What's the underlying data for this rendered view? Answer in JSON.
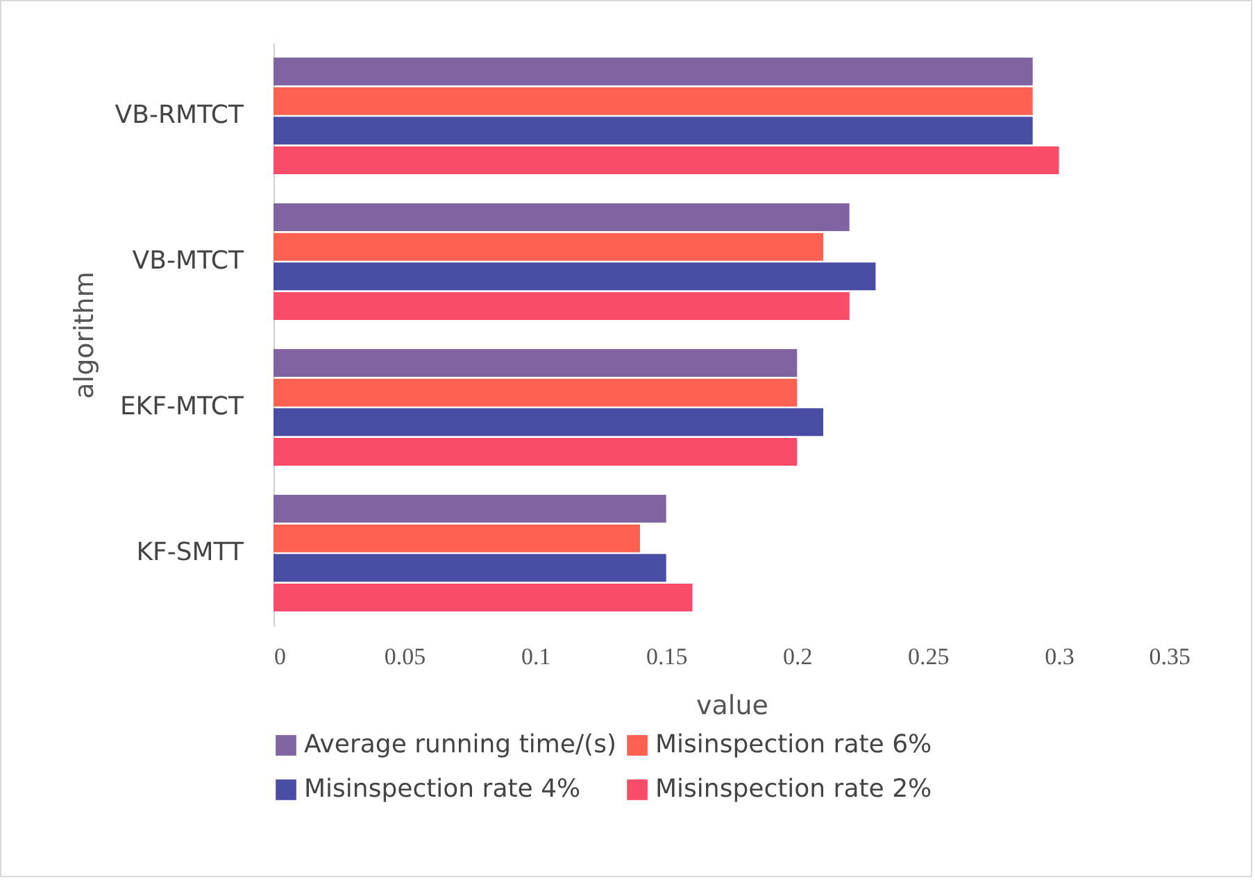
{
  "chart_data": {
    "type": "bar",
    "orientation": "horizontal",
    "xlabel": "value",
    "ylabel": "algorithm",
    "categories": [
      "VB-RMTCT",
      "VB-MTCT",
      "EKF-MTCT",
      "KF-SMTT"
    ],
    "series": [
      {
        "name": "Average running time/(s)",
        "color": "#8064a2",
        "values": [
          0.29,
          0.22,
          0.2,
          0.15
        ]
      },
      {
        "name": "Misinspection rate 6%",
        "color": "#ff6150",
        "values": [
          0.29,
          0.21,
          0.2,
          0.14
        ]
      },
      {
        "name": "Misinspection rate 4%",
        "color": "#4a4da4",
        "values": [
          0.29,
          0.23,
          0.21,
          0.15
        ]
      },
      {
        "name": "Misinspection rate 2%",
        "color": "#f84c68",
        "values": [
          0.3,
          0.22,
          0.2,
          0.16
        ]
      }
    ],
    "xlim": [
      0,
      0.35
    ],
    "xticks": [
      0,
      0.05,
      0.1,
      0.15,
      0.2,
      0.25,
      0.3,
      0.35
    ],
    "grid": false,
    "legend": "bottom"
  }
}
